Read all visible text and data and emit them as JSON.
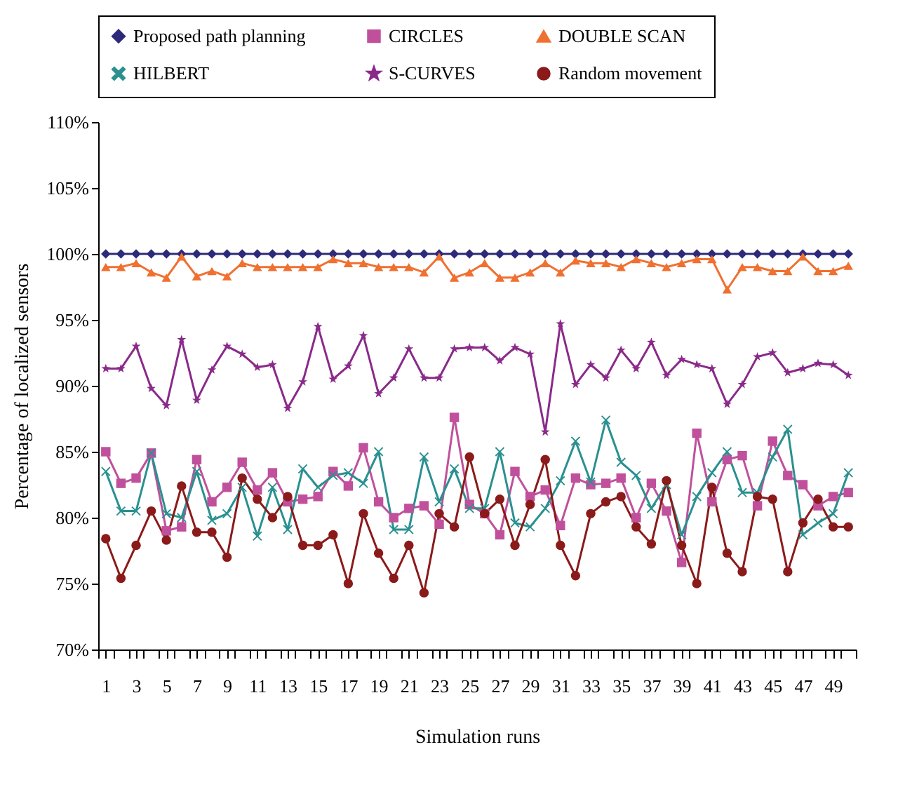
{
  "chart_data": {
    "type": "line",
    "xlabel": "Simulation runs",
    "ylabel": "Percentage of localized sensors",
    "legend": "top",
    "x": [
      1,
      2,
      3,
      4,
      5,
      6,
      7,
      8,
      9,
      10,
      11,
      12,
      13,
      14,
      15,
      16,
      17,
      18,
      19,
      20,
      21,
      22,
      23,
      24,
      25,
      26,
      27,
      28,
      29,
      30,
      31,
      32,
      33,
      34,
      35,
      36,
      37,
      38,
      39,
      40,
      41,
      42,
      43,
      44,
      45,
      46,
      47,
      48,
      49,
      50
    ],
    "xlim": [
      0.5,
      50.5
    ],
    "xticks": [
      {
        "value": 0.5,
        "label": null
      },
      1,
      {
        "value": 1.5,
        "label": null
      },
      {
        "value": 2.5,
        "label": null
      },
      3,
      {
        "value": 3.5,
        "label": null
      },
      {
        "value": 4.5,
        "label": null
      },
      5,
      {
        "value": 5.5,
        "label": null
      },
      {
        "value": 6.5,
        "label": null
      },
      7,
      {
        "value": 7.5,
        "label": null
      },
      {
        "value": 8.5,
        "label": null
      },
      9,
      {
        "value": 9.5,
        "label": null
      },
      {
        "value": 10.5,
        "label": null
      },
      11,
      {
        "value": 11.5,
        "label": null
      },
      {
        "value": 12.5,
        "label": null
      },
      13,
      {
        "value": 13.5,
        "label": null
      },
      {
        "value": 14.5,
        "label": null
      },
      15,
      {
        "value": 15.5,
        "label": null
      },
      {
        "value": 16.5,
        "label": null
      },
      17,
      {
        "value": 17.5,
        "label": null
      },
      {
        "value": 18.5,
        "label": null
      },
      19,
      {
        "value": 19.5,
        "label": null
      },
      {
        "value": 20.5,
        "label": null
      },
      21,
      {
        "value": 21.5,
        "label": null
      },
      {
        "value": 22.5,
        "label": null
      },
      23,
      {
        "value": 23.5,
        "label": null
      },
      {
        "value": 24.5,
        "label": null
      },
      25,
      {
        "value": 25.5,
        "label": null
      },
      {
        "value": 26.5,
        "label": null
      },
      27,
      {
        "value": 27.5,
        "label": null
      },
      {
        "value": 28.5,
        "label": null
      },
      29,
      {
        "value": 29.5,
        "label": null
      },
      {
        "value": 30.5,
        "label": null
      },
      31,
      {
        "value": 31.5,
        "label": null
      },
      {
        "value": 32.5,
        "label": null
      },
      33,
      {
        "value": 33.5,
        "label": null
      },
      {
        "value": 34.5,
        "label": null
      },
      35,
      {
        "value": 35.5,
        "label": null
      },
      {
        "value": 36.5,
        "label": null
      },
      37,
      {
        "value": 37.5,
        "label": null
      },
      {
        "value": 38.5,
        "label": null
      },
      39,
      {
        "value": 39.5,
        "label": null
      },
      {
        "value": 40.5,
        "label": null
      },
      41,
      {
        "value": 41.5,
        "label": null
      },
      {
        "value": 42.5,
        "label": null
      },
      43,
      {
        "value": 43.5,
        "label": null
      },
      {
        "value": 44.5,
        "label": null
      },
      45,
      {
        "value": 45.5,
        "label": null
      },
      {
        "value": 46.5,
        "label": null
      },
      47,
      {
        "value": 47.5,
        "label": null
      },
      {
        "value": 48.5,
        "label": null
      },
      49,
      {
        "value": 49.5,
        "label": null
      },
      {
        "value": 50.5,
        "label": null
      }
    ],
    "ylim": [
      70,
      110
    ],
    "yticks": [
      {
        "value": 70,
        "label": "70%"
      },
      {
        "value": 75,
        "label": "75%"
      },
      {
        "value": 80,
        "label": "80%"
      },
      {
        "value": 85,
        "label": "85%"
      },
      {
        "value": 90,
        "label": "90%"
      },
      {
        "value": 95,
        "label": "95%"
      },
      {
        "value": 100,
        "label": "100%"
      },
      {
        "value": 105,
        "label": "105%"
      },
      {
        "value": 110,
        "label": "110%"
      }
    ],
    "series": [
      {
        "name": "Proposed path planning",
        "color": "#2e2a7a",
        "marker": "diamond",
        "values": [
          100,
          100,
          100,
          100,
          100,
          100,
          100,
          100,
          100,
          100,
          100,
          100,
          100,
          100,
          100,
          100,
          100,
          100,
          100,
          100,
          100,
          100,
          100,
          100,
          100,
          100,
          100,
          100,
          100,
          100,
          100,
          100,
          100,
          100,
          100,
          100,
          100,
          100,
          100,
          100,
          100,
          100,
          100,
          100,
          100,
          100,
          100,
          100,
          100,
          100
        ]
      },
      {
        "name": "CIRCLES",
        "color": "#c0509c",
        "marker": "square",
        "values": [
          85,
          82.6,
          83,
          84.9,
          79,
          79.3,
          84.4,
          81.2,
          82.3,
          84.2,
          82.1,
          83.4,
          81.2,
          81.4,
          81.6,
          83.5,
          82.4,
          85.3,
          81.2,
          80,
          80.7,
          80.9,
          79.5,
          87.6,
          81,
          80.3,
          78.7,
          83.5,
          81.6,
          82.1,
          79.4,
          83,
          82.5,
          82.6,
          83,
          80,
          82.6,
          80.5,
          76.6,
          86.4,
          81.2,
          84.4,
          84.7,
          80.9,
          85.8,
          83.2,
          82.5,
          80.9,
          81.6,
          81.9
        ]
      },
      {
        "name": "DOUBLE SCAN",
        "color": "#f07030",
        "marker": "triangle",
        "values": [
          99,
          99,
          99.3,
          98.6,
          98.2,
          99.8,
          98.3,
          98.7,
          98.3,
          99.3,
          99,
          99,
          99,
          99,
          99,
          99.6,
          99.3,
          99.3,
          99,
          99,
          99,
          98.6,
          99.8,
          98.2,
          98.6,
          99.3,
          98.2,
          98.2,
          98.6,
          99.3,
          98.6,
          99.5,
          99.3,
          99.3,
          99,
          99.6,
          99.3,
          99,
          99.3,
          99.6,
          99.6,
          97.3,
          99,
          99,
          98.7,
          98.7,
          99.8,
          98.7,
          98.7,
          99.1
        ]
      },
      {
        "name": "HILBERT",
        "color": "#2a9090",
        "marker": "cross",
        "values": [
          83.5,
          80.5,
          80.5,
          84.9,
          80.3,
          80,
          83.5,
          79.8,
          80.3,
          82.3,
          78.6,
          82.3,
          79.1,
          83.7,
          82.3,
          83.2,
          83.4,
          82.6,
          85,
          79.1,
          79.1,
          84.6,
          81.2,
          83.7,
          80.7,
          80.7,
          85,
          79.6,
          79.3,
          80.7,
          82.8,
          85.8,
          82.7,
          87.4,
          84.2,
          83.2,
          80.7,
          82.5,
          78.7,
          81.6,
          83.4,
          85,
          81.9,
          81.9,
          84.6,
          86.7,
          78.7,
          79.6,
          80.3,
          83.4
        ]
      },
      {
        "name": "S-CURVES",
        "color": "#8a2a8a",
        "marker": "star",
        "values": [
          91.3,
          91.3,
          93,
          89.8,
          88.5,
          93.5,
          88.9,
          91.2,
          93,
          92.4,
          91.4,
          91.6,
          88.3,
          90.3,
          94.5,
          90.5,
          91.5,
          93.8,
          89.4,
          90.6,
          92.8,
          90.6,
          90.6,
          92.8,
          92.9,
          92.9,
          91.9,
          92.9,
          92.4,
          86.5,
          94.7,
          90.1,
          91.6,
          90.6,
          92.7,
          91.3,
          93.3,
          90.8,
          92,
          91.6,
          91.3,
          88.6,
          90.1,
          92.2,
          92.5,
          91,
          91.3,
          91.7,
          91.6,
          90.8
        ]
      },
      {
        "name": "Random movement",
        "color": "#8b1a1a",
        "marker": "circle",
        "values": [
          78.4,
          75.4,
          77.9,
          80.5,
          78.3,
          82.4,
          78.9,
          78.9,
          77,
          83,
          81.4,
          80,
          81.6,
          77.9,
          77.9,
          78.7,
          75,
          80.3,
          77.3,
          75.4,
          77.9,
          74.3,
          80.3,
          79.3,
          84.6,
          80.3,
          81.4,
          77.9,
          81,
          84.4,
          77.9,
          75.6,
          80.3,
          81.2,
          81.6,
          79.3,
          78,
          82.8,
          77.9,
          75,
          82.3,
          77.3,
          75.9,
          81.6,
          81.4,
          75.9,
          79.6,
          81.4,
          79.3,
          79.3
        ]
      }
    ]
  }
}
